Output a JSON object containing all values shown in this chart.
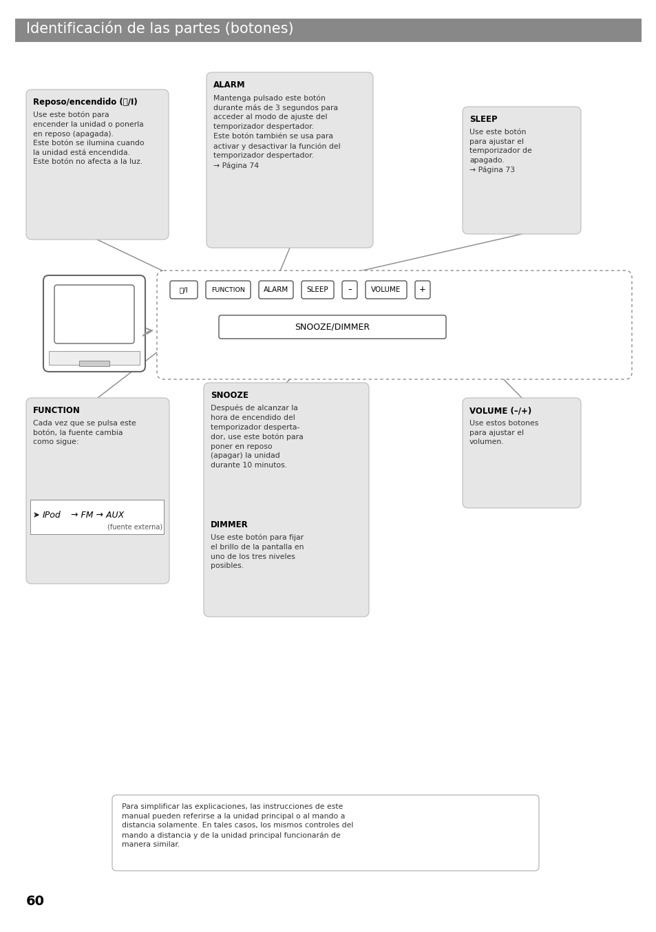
{
  "title": "Identificación de las partes (botones)",
  "title_bg": "#888888",
  "title_color": "#ffffff",
  "page_bg": "#ffffff",
  "box_bg": "#e6e6e6",
  "box_edge": "#bbbbbb",
  "reposo_title": "Reposo/encendido (⏻/I)",
  "reposo_body": "Use este botón para\nencender la unidad o ponerla\nen reposo (apagada).\nEste botón se ilumina cuando\nla unidad está encendida.\nEste botón no afecta a la luz.",
  "alarm_title": "ALARM",
  "alarm_body": "Mantenga pulsado este botón\ndurante más de 3 segundos para\nacceder al modo de ajuste del\ntemporizador despertador.\nEste botón también se usa para\nactivar y desactivar la función del\ntemporizador despertador.\n→ Página 74",
  "sleep_title": "SLEEP",
  "sleep_body": "Use este botón\npara ajustar el\ntemporizador de\napagado.\n→ Página 73",
  "function_title": "FUNCTION",
  "function_body": "Cada vez que se pulsa este\nbotón, la fuente cambia\ncomo sigue:",
  "function_note": "(fuente externa)",
  "snooze_title": "SNOOZE",
  "snooze_body": "Después de alcanzar la\nhora de encendido del\ntemporizador desperta-\ndor, use este botón para\nponer en reposo\n(apagar) la unidad\ndurante 10 minutos.",
  "dimmer_title": "DIMMER",
  "dimmer_body": "Use este botón para fijar\nel brillo de la pantalla en\nuno de los tres niveles\nposibles.",
  "volume_title": "VOLUME (–/+)",
  "volume_body": "Use estos botones\npara ajustar el\nvolumen.",
  "footer_text": "Para simplificar las explicaciones, las instrucciones de este\nmanual pueden referirse a la unidad principal o al mando a\ndistancia solamente. En tales casos, los mismos controles del\nmando a distancia y de la unidad principal funcionarán de\nmanera similar.",
  "page_number": "60"
}
